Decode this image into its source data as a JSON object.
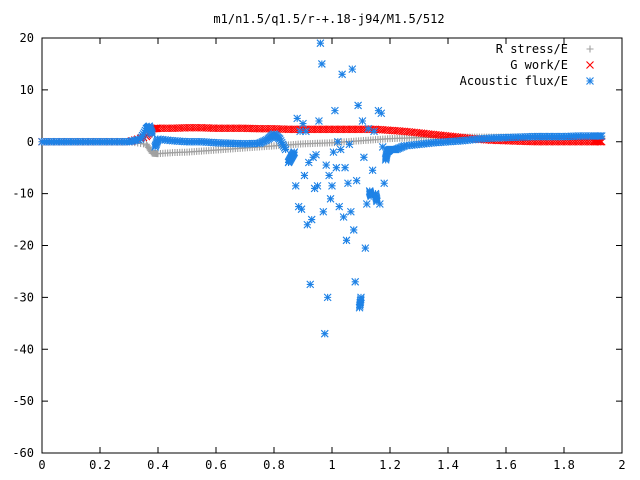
{
  "chart_data": {
    "type": "scatter",
    "title": "m1/n1.5/q1.5/r-+.18-j94/M1.5/512",
    "xlabel": "",
    "ylabel": "",
    "xlim": [
      0,
      2
    ],
    "ylim": [
      -60,
      20
    ],
    "xticks": [
      "0",
      "0.2",
      "0.4",
      "0.6",
      "0.8",
      "1",
      "1.2",
      "1.4",
      "1.6",
      "1.8",
      "2"
    ],
    "yticks": [
      "20",
      "10",
      "0",
      "-10",
      "-20",
      "-30",
      "-40",
      "-50",
      "-60"
    ],
    "grid": false,
    "legend_position": "top-right",
    "series": [
      {
        "name": "R stress/E",
        "marker": "plus",
        "color": "#a0a0a0",
        "x": [
          0.0,
          0.1,
          0.2,
          0.3,
          0.36,
          0.38,
          0.4,
          0.45,
          0.5,
          0.55,
          0.6,
          0.65,
          0.7,
          0.75,
          0.8,
          0.85,
          0.9,
          0.95,
          1.0,
          1.05,
          1.1,
          1.15,
          1.2,
          1.25,
          1.3,
          1.35,
          1.4,
          1.45,
          1.5,
          1.55,
          1.6,
          1.65,
          1.7,
          1.75,
          1.8,
          1.85,
          1.9,
          1.93
        ],
        "y": [
          0.0,
          0.0,
          0.0,
          0.0,
          -0.5,
          -2.2,
          -2.3,
          -2.1,
          -2.0,
          -1.8,
          -1.6,
          -1.4,
          -1.2,
          -1.0,
          -0.8,
          -0.6,
          -0.4,
          -0.3,
          -0.2,
          0.0,
          0.2,
          0.4,
          0.6,
          0.7,
          0.8,
          0.9,
          0.9,
          0.9,
          0.9,
          0.9,
          0.9,
          0.9,
          0.9,
          0.9,
          0.9,
          0.9,
          0.9,
          0.9
        ]
      },
      {
        "name": "G work/E",
        "marker": "cross",
        "color": "#ff0000",
        "x": [
          0.0,
          0.1,
          0.2,
          0.3,
          0.36,
          0.38,
          0.4,
          0.45,
          0.5,
          0.55,
          0.6,
          0.65,
          0.7,
          0.75,
          0.8,
          0.85,
          0.9,
          0.95,
          1.0,
          1.05,
          1.1,
          1.15,
          1.2,
          1.25,
          1.3,
          1.35,
          1.4,
          1.45,
          1.5,
          1.55,
          1.6,
          1.65,
          1.7,
          1.75,
          1.8,
          1.85,
          1.9,
          1.93
        ],
        "y": [
          0.0,
          0.0,
          0.0,
          0.0,
          1.0,
          2.5,
          2.6,
          2.6,
          2.7,
          2.7,
          2.6,
          2.6,
          2.6,
          2.5,
          2.5,
          2.4,
          2.4,
          2.4,
          2.4,
          2.4,
          2.4,
          2.4,
          2.2,
          2.0,
          1.7,
          1.4,
          1.1,
          0.8,
          0.5,
          0.3,
          0.2,
          0.1,
          0.0,
          0.0,
          0.0,
          0.0,
          0.0,
          0.0
        ]
      },
      {
        "name": "Acoustic flux/E",
        "marker": "star",
        "color": "#1e82e6",
        "x": [
          0.0,
          0.05,
          0.1,
          0.15,
          0.2,
          0.25,
          0.3,
          0.34,
          0.36,
          0.37,
          0.38,
          0.39,
          0.4,
          0.45,
          0.5,
          0.55,
          0.6,
          0.65,
          0.7,
          0.75,
          0.78,
          0.8,
          0.82,
          0.84,
          0.85,
          0.86,
          0.87,
          0.875,
          0.88,
          0.885,
          0.89,
          0.895,
          0.9,
          0.905,
          0.91,
          0.915,
          0.92,
          0.925,
          0.93,
          0.935,
          0.94,
          0.945,
          0.95,
          0.955,
          0.96,
          0.965,
          0.97,
          0.975,
          0.98,
          0.985,
          0.99,
          0.995,
          1.0,
          1.005,
          1.01,
          1.015,
          1.02,
          1.025,
          1.03,
          1.035,
          1.04,
          1.045,
          1.05,
          1.055,
          1.06,
          1.065,
          1.07,
          1.075,
          1.08,
          1.085,
          1.09,
          1.095,
          1.1,
          1.105,
          1.11,
          1.115,
          1.12,
          1.125,
          1.13,
          1.135,
          1.14,
          1.145,
          1.15,
          1.155,
          1.16,
          1.165,
          1.17,
          1.175,
          1.18,
          1.185,
          1.19,
          1.2,
          1.22,
          1.25,
          1.3,
          1.35,
          1.4,
          1.45,
          1.5,
          1.55,
          1.6,
          1.65,
          1.7,
          1.75,
          1.8,
          1.85,
          1.9,
          1.93
        ],
        "y": [
          0.0,
          0.0,
          0.0,
          0.0,
          0.0,
          0.0,
          0.0,
          0.5,
          2.5,
          3.0,
          1.5,
          -1.0,
          0.5,
          0.2,
          0.0,
          0.0,
          -0.2,
          -0.3,
          -0.4,
          -0.3,
          0.5,
          1.5,
          0.5,
          -1.5,
          -4.0,
          -3.0,
          -2.0,
          -8.5,
          4.5,
          -12.5,
          2.0,
          -13.0,
          3.5,
          -6.5,
          2.0,
          -16.0,
          -4.0,
          -27.5,
          -15.0,
          -3.0,
          -9.0,
          -2.5,
          -8.5,
          4.0,
          19.0,
          15.0,
          -13.5,
          -37.0,
          -4.5,
          -30.0,
          -6.5,
          -11.0,
          -8.5,
          -2.0,
          6.0,
          -5.0,
          0.0,
          -12.5,
          -1.5,
          13.0,
          -14.5,
          -5.0,
          -19.0,
          -8.0,
          -0.5,
          -13.5,
          14.0,
          -17.0,
          -27.0,
          -7.5,
          7.0,
          -32.0,
          -30.0,
          4.0,
          -3.0,
          -20.5,
          -12.0,
          2.5,
          -9.5,
          -10.5,
          -5.5,
          2.0,
          -10.0,
          -11.5,
          6.0,
          -12.0,
          5.5,
          -1.0,
          -8.0,
          -3.5,
          -2.0,
          -1.5,
          -1.5,
          -0.8,
          -0.5,
          -0.2,
          0.0,
          0.2,
          0.5,
          0.7,
          0.8,
          0.9,
          1.0,
          1.0,
          1.0,
          1.1,
          1.1,
          1.1
        ]
      }
    ]
  }
}
